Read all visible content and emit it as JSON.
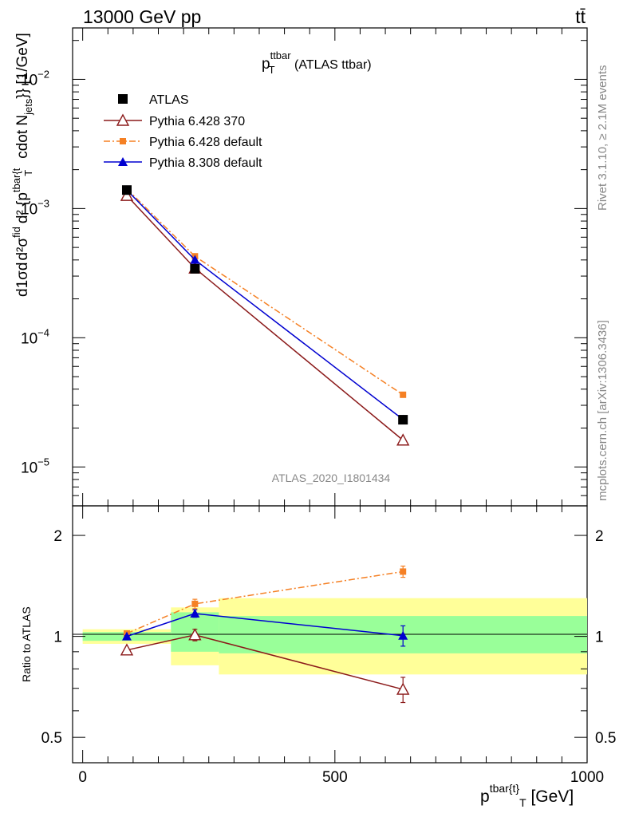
{
  "header": {
    "left_label": "13000 GeV pp",
    "right_label": "tt̄"
  },
  "side_labels": {
    "rivet": "Rivet 3.1.10, ≥ 2.1M events",
    "mcplots": "mcplots.cern.ch [arXiv:1306.3436]"
  },
  "main_plot": {
    "title_main": "p",
    "title_sup": "ttbar",
    "title_sub": "T",
    "title_rest": " (ATLAS ttbar)",
    "analysis_id": "ATLAS_2020_I1801434",
    "ylabel_parts": {
      "d": "d",
      "one": "1",
      "sigma": "σ",
      "d2sigma": "d²σ",
      "fid": "fid",
      "d2": "d² {p",
      "sup": "tbar{t",
      "sub": "T",
      "cdot": "cdot N",
      "jets": "jets",
      "close": "}} [1/GeV]"
    },
    "y_ticks": [
      {
        "value": 1e-05,
        "base": "10",
        "exp": "−5"
      },
      {
        "value": 0.0001,
        "base": "10",
        "exp": "−4"
      },
      {
        "value": 0.001,
        "base": "10",
        "exp": "−3"
      },
      {
        "value": 0.01,
        "base": "10",
        "exp": "−2"
      }
    ]
  },
  "ratio_plot": {
    "ylabel": "Ratio to ATLAS",
    "y_ticks": [
      "0.5",
      "1",
      "2"
    ],
    "x_ticks": [
      "0",
      "500",
      "1000"
    ],
    "xlabel_main": "p",
    "xlabel_sup": "tbar{t}",
    "xlabel_sub": "T",
    "xlabel_rest": " [GeV]"
  },
  "legend": [
    {
      "label": "ATLAS",
      "color": "#000000",
      "marker": "filled-square",
      "line": "none"
    },
    {
      "label": "Pythia 6.428 370",
      "color": "#8b1a1a",
      "marker": "open-triangle",
      "line": "solid"
    },
    {
      "label": "Pythia 6.428 default",
      "color": "#f58024",
      "marker": "filled-square-small",
      "line": "dashdot"
    },
    {
      "label": "Pythia 8.308 default",
      "color": "#0000d0",
      "marker": "filled-triangle",
      "line": "solid"
    }
  ],
  "chart_data": {
    "type": "scatter",
    "x_range": [
      -20,
      1000
    ],
    "y_scale": "log",
    "y_range": [
      5e-06,
      0.025
    ],
    "ratio_y_scale": "log",
    "ratio_y_range": [
      0.42,
      2.45
    ],
    "bins": [
      {
        "low": 0,
        "high": 175,
        "x": 87.5
      },
      {
        "low": 175,
        "high": 270,
        "x": 222.5
      },
      {
        "low": 270,
        "high": 1000,
        "x": 635
      }
    ],
    "series": [
      {
        "name": "ATLAS",
        "y": [
          0.00139,
          0.000342,
          2.32e-05
        ],
        "err": [
          4e-05,
          1e-05,
          1.8e-06
        ]
      },
      {
        "name": "Pythia 6.428 370",
        "y": [
          0.00126,
          0.000345,
          1.61e-05
        ],
        "err": [
          2e-05,
          1e-05,
          9e-07
        ],
        "ratio": [
          0.91,
          1.01,
          0.695
        ],
        "ratio_err": [
          0.005,
          0.04,
          0.06
        ]
      },
      {
        "name": "Pythia 6.428 default",
        "y": [
          0.00142,
          0.000427,
          3.62e-05
        ],
        "err": [
          2e-05,
          1e-05,
          1.5e-06
        ],
        "ratio": [
          1.02,
          1.25,
          1.56
        ],
        "ratio_err": [
          0.005,
          0.04,
          0.06
        ]
      },
      {
        "name": "Pythia 8.308 default",
        "y": [
          0.00139,
          0.000401,
          2.33e-05
        ],
        "err": [
          2e-05,
          1e-05,
          1.2e-06
        ],
        "ratio": [
          1.0,
          1.17,
          1.005
        ],
        "ratio_err": [
          0.005,
          0.03,
          0.07
        ]
      }
    ],
    "ratio_bands": {
      "yellow": [
        [
          0.95,
          1.05
        ],
        [
          0.82,
          1.22
        ],
        [
          0.77,
          1.3
        ]
      ],
      "green": [
        [
          0.97,
          1.03
        ],
        [
          0.9,
          1.18
        ],
        [
          0.89,
          1.15
        ]
      ]
    }
  }
}
